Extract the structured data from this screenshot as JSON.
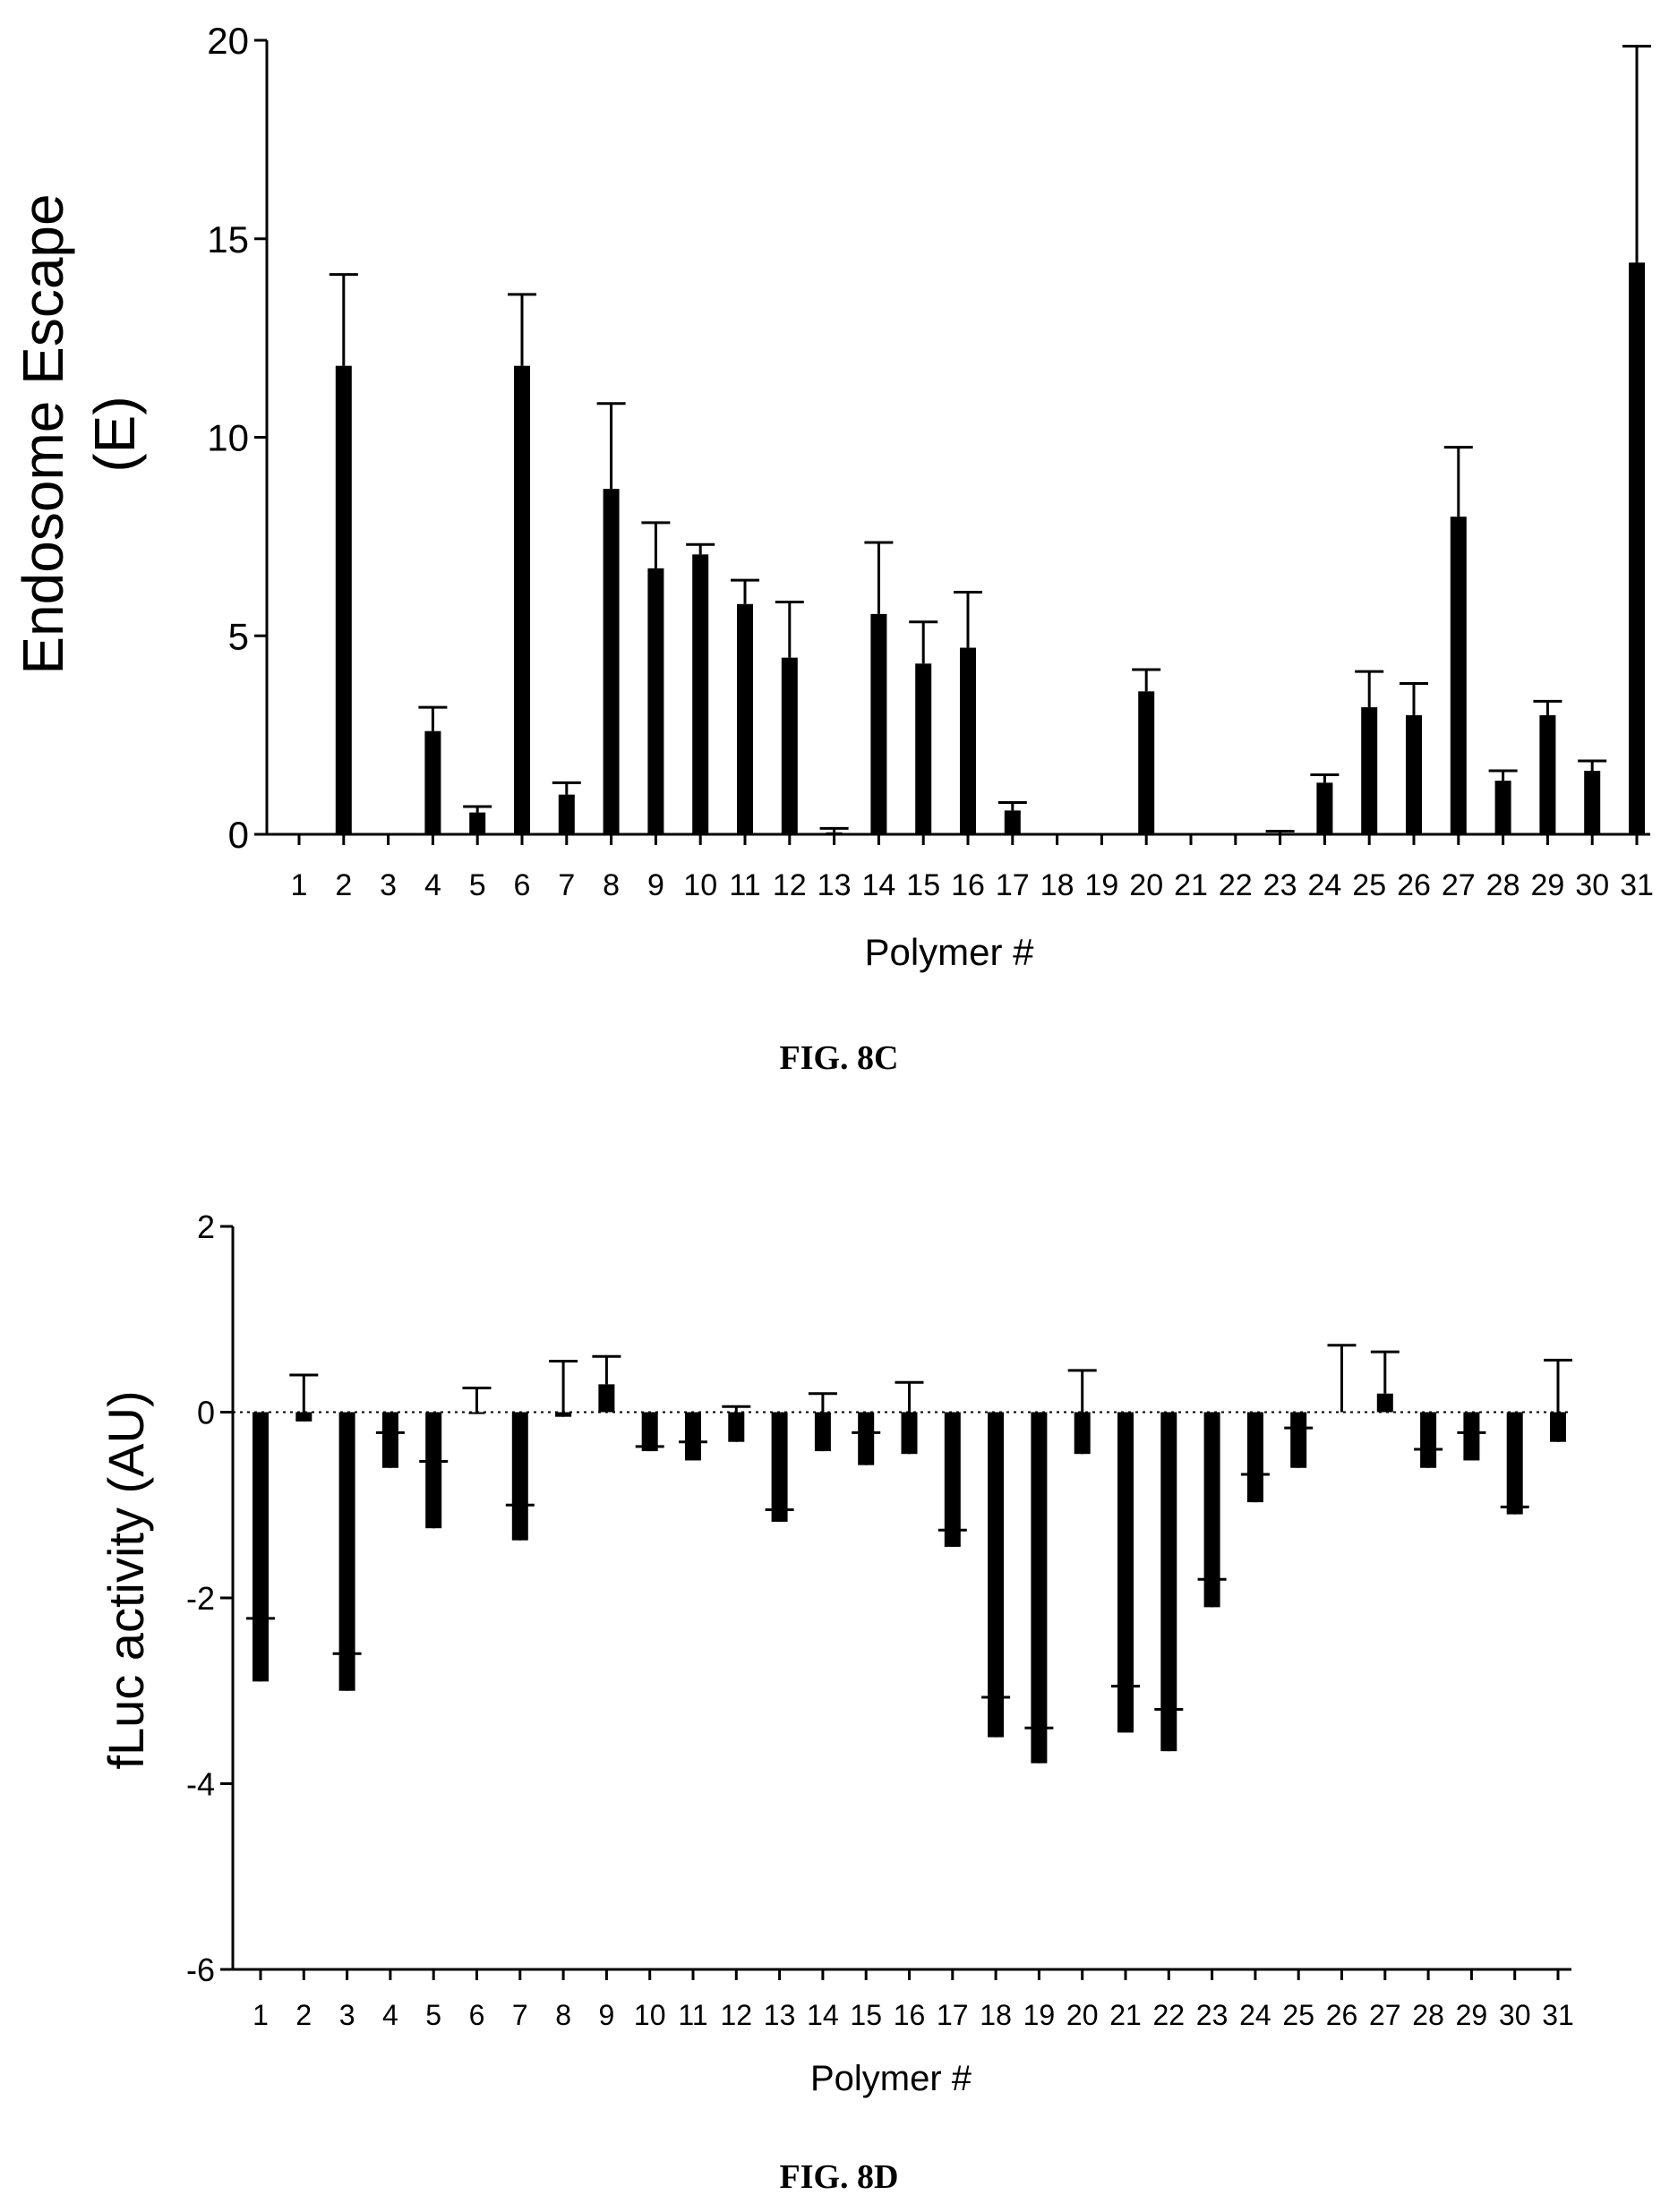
{
  "figures": {
    "c_caption": "FIG. 8C",
    "d_caption": "FIG. 8D"
  },
  "chart_data": [
    {
      "type": "bar",
      "title": "",
      "xlabel": "Polymer #",
      "ylabel_lines": [
        "Endosome Escape",
        "(E)"
      ],
      "ylim": [
        0,
        20
      ],
      "yticks": [
        0,
        5,
        10,
        15,
        20
      ],
      "grid": false,
      "legend": "none",
      "bar_color": "#000000",
      "categories": [
        "1",
        "2",
        "3",
        "4",
        "5",
        "6",
        "7",
        "8",
        "9",
        "10",
        "11",
        "12",
        "13",
        "14",
        "15",
        "16",
        "17",
        "18",
        "19",
        "20",
        "21",
        "22",
        "23",
        "24",
        "25",
        "26",
        "27",
        "28",
        "29",
        "30",
        "31"
      ],
      "values": [
        0,
        11.8,
        0,
        2.6,
        0.55,
        11.8,
        1.0,
        8.7,
        6.7,
        7.05,
        5.8,
        4.45,
        0.05,
        5.55,
        4.3,
        4.7,
        0.6,
        0,
        0,
        3.6,
        0,
        0,
        0.03,
        1.3,
        3.2,
        3.0,
        8.0,
        1.35,
        3.0,
        1.6,
        14.4
      ],
      "errors": [
        0,
        2.3,
        0,
        0.6,
        0.15,
        1.8,
        0.3,
        2.15,
        1.15,
        0.25,
        0.6,
        1.4,
        0.1,
        1.8,
        1.05,
        1.4,
        0.2,
        0,
        0,
        0.55,
        0,
        0,
        0.05,
        0.2,
        0.9,
        0.8,
        1.75,
        0.25,
        0.35,
        0.25,
        5.45
      ]
    },
    {
      "type": "bar",
      "title": "",
      "xlabel": "Polymer #",
      "ylabel": "fLuc activity (AU)",
      "ylim": [
        -6,
        2
      ],
      "yticks": [
        -6,
        -4,
        -2,
        0,
        2
      ],
      "reference_line": 0,
      "grid": false,
      "legend": "none",
      "bar_color": "#000000",
      "categories": [
        "1",
        "2",
        "3",
        "4",
        "5",
        "6",
        "7",
        "8",
        "9",
        "10",
        "11",
        "12",
        "13",
        "14",
        "15",
        "16",
        "17",
        "18",
        "19",
        "20",
        "21",
        "22",
        "23",
        "24",
        "25",
        "26",
        "27",
        "28",
        "29",
        "30",
        "31"
      ],
      "values": [
        -2.9,
        -0.1,
        -3.0,
        -0.6,
        -1.25,
        -0.02,
        -1.38,
        -0.05,
        0.3,
        -0.42,
        -0.52,
        -0.32,
        -1.18,
        -0.42,
        -0.57,
        -0.45,
        -1.45,
        -3.5,
        -3.78,
        -0.45,
        -3.45,
        -3.65,
        -2.1,
        -0.97,
        -0.6,
        0.0,
        0.2,
        -0.6,
        -0.52,
        -1.1,
        -0.32
      ],
      "errors": [
        0.68,
        0.5,
        0.4,
        0.38,
        0.72,
        0.28,
        0.38,
        0.6,
        0.3,
        0.05,
        0.2,
        0.38,
        0.13,
        0.62,
        0.35,
        0.77,
        0.18,
        0.43,
        0.38,
        0.9,
        0.5,
        0.45,
        0.3,
        0.3,
        0.43,
        0.72,
        0.45,
        0.2,
        0.3,
        0.08,
        0.88
      ]
    }
  ]
}
